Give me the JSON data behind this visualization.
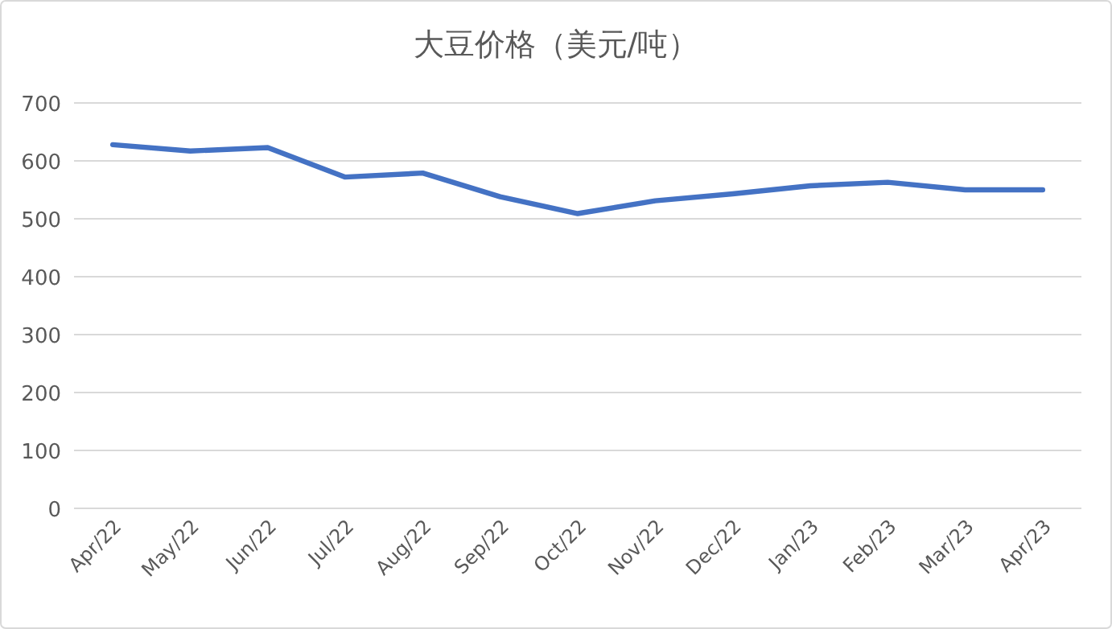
{
  "chart_data": {
    "type": "line",
    "title": "大豆价格（美元/吨）",
    "categories": [
      "Apr/22",
      "May/22",
      "Jun/22",
      "Jul/22",
      "Aug/22",
      "Sep/22",
      "Oct/22",
      "Nov/22",
      "Dec/22",
      "Jan/23",
      "Feb/23",
      "Mar/23",
      "Apr/23"
    ],
    "series": [
      {
        "color": "#4472c4",
        "values": [
          628,
          617,
          623,
          572,
          579,
          538,
          509,
          531,
          543,
          557,
          563,
          550,
          550
        ]
      }
    ],
    "ylim": [
      0,
      700
    ],
    "yticks": [
      0,
      100,
      200,
      300,
      400,
      500,
      600,
      700
    ],
    "grid": "y",
    "marker": "none",
    "line_style": "solid"
  }
}
